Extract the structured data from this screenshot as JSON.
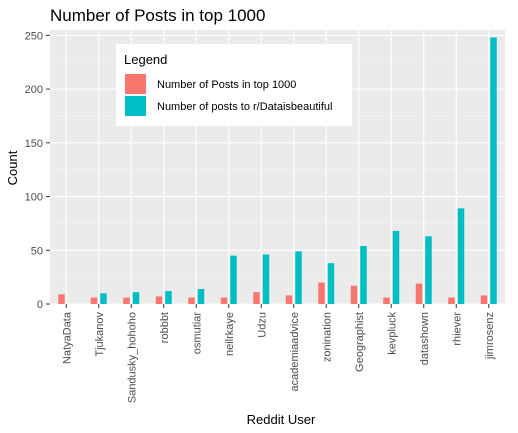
{
  "chart_data": {
    "type": "bar",
    "title": "Number of Posts  in top 1000",
    "xlabel": "Reddit User",
    "ylabel": "Count",
    "ylim": [
      0,
      255
    ],
    "yticks": [
      0,
      50,
      100,
      150,
      200,
      250
    ],
    "grid": true,
    "legend": {
      "title": "Legend",
      "placement": "top-left inside"
    },
    "categories": [
      "NatyaData",
      "Tjukanov",
      "Sandusky_hohoho",
      "robbbt",
      "osmutiar",
      "neilrkaye",
      "Udzu",
      "academiaadvice",
      "zonination",
      "Geographist",
      "kevpluck",
      "datashown",
      "rhiever",
      "jimrosenz"
    ],
    "series": [
      {
        "name": "Number of Posts in top 1000",
        "color": "#F8766D",
        "values": [
          9,
          6,
          6,
          7,
          6,
          6,
          11,
          8,
          20,
          17,
          6,
          19,
          6,
          8
        ]
      },
      {
        "name": "Number of posts to r/Dataisbeautiful",
        "color": "#00BFC4",
        "values": [
          0,
          10,
          11,
          12,
          14,
          45,
          46,
          49,
          38,
          54,
          68,
          63,
          89,
          248
        ]
      }
    ]
  }
}
